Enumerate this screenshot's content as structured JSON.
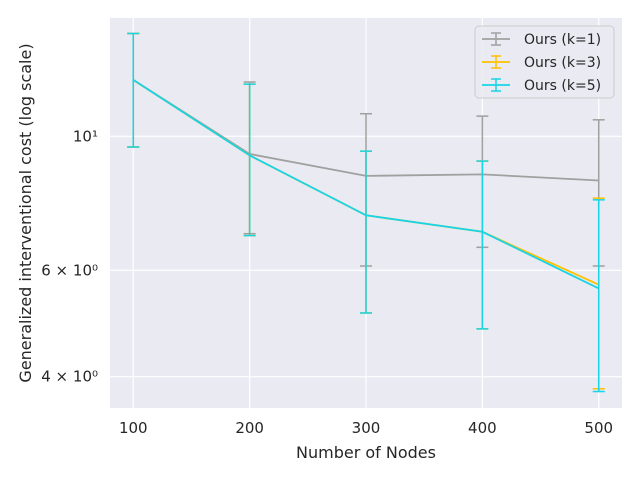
{
  "chart_data": {
    "type": "line",
    "x": [
      100,
      200,
      300,
      400,
      500
    ],
    "xlabel": "Number of Nodes",
    "ylabel": "Generalized interventional cost (log scale)",
    "yscale": "log",
    "xlim": [
      80,
      520
    ],
    "ylim": [
      3.55,
      15.7
    ],
    "x_ticks": [
      100,
      200,
      300,
      400,
      500
    ],
    "x_tick_labels": [
      "100",
      "200",
      "300",
      "400",
      "500"
    ],
    "y_ticks": [
      4,
      6,
      10
    ],
    "y_tick_labels": [
      "4 × 10⁰",
      "6 × 10⁰",
      "10¹"
    ],
    "grid": true,
    "background": "#eaeaf2",
    "legend_position": "top-right",
    "series": [
      {
        "name": "Ours (k=1)",
        "color": "#a0a0a0",
        "values": [
          12.4,
          9.35,
          8.6,
          8.65,
          8.45
        ],
        "error_lower": [
          9.6,
          6.9,
          6.1,
          6.55,
          6.1
        ],
        "error_upper": [
          14.8,
          12.3,
          10.9,
          10.8,
          10.65
        ]
      },
      {
        "name": "Ours (k=3)",
        "color": "#ffc000",
        "values": [
          12.4,
          9.3,
          7.4,
          6.95,
          5.68
        ],
        "error_lower": [
          9.6,
          6.85,
          5.1,
          4.8,
          3.82
        ],
        "error_upper": [
          14.8,
          12.2,
          9.45,
          9.1,
          7.9
        ]
      },
      {
        "name": "Ours (k=5)",
        "color": "#17d4e6",
        "values": [
          12.4,
          9.3,
          7.4,
          6.95,
          5.6
        ],
        "error_lower": [
          9.6,
          6.85,
          5.1,
          4.8,
          3.78
        ],
        "error_upper": [
          14.8,
          12.2,
          9.45,
          9.1,
          7.85
        ]
      }
    ]
  }
}
